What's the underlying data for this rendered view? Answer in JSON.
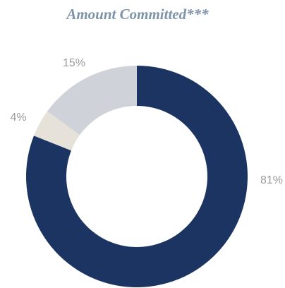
{
  "chart_data": {
    "type": "donut",
    "title": "Amount Committed***",
    "values": [
      81,
      4,
      15
    ],
    "value_labels": [
      "81%",
      "4%",
      "15%"
    ],
    "colors": [
      "#1b3461",
      "#e6e1d9",
      "#cfd3d9"
    ]
  }
}
